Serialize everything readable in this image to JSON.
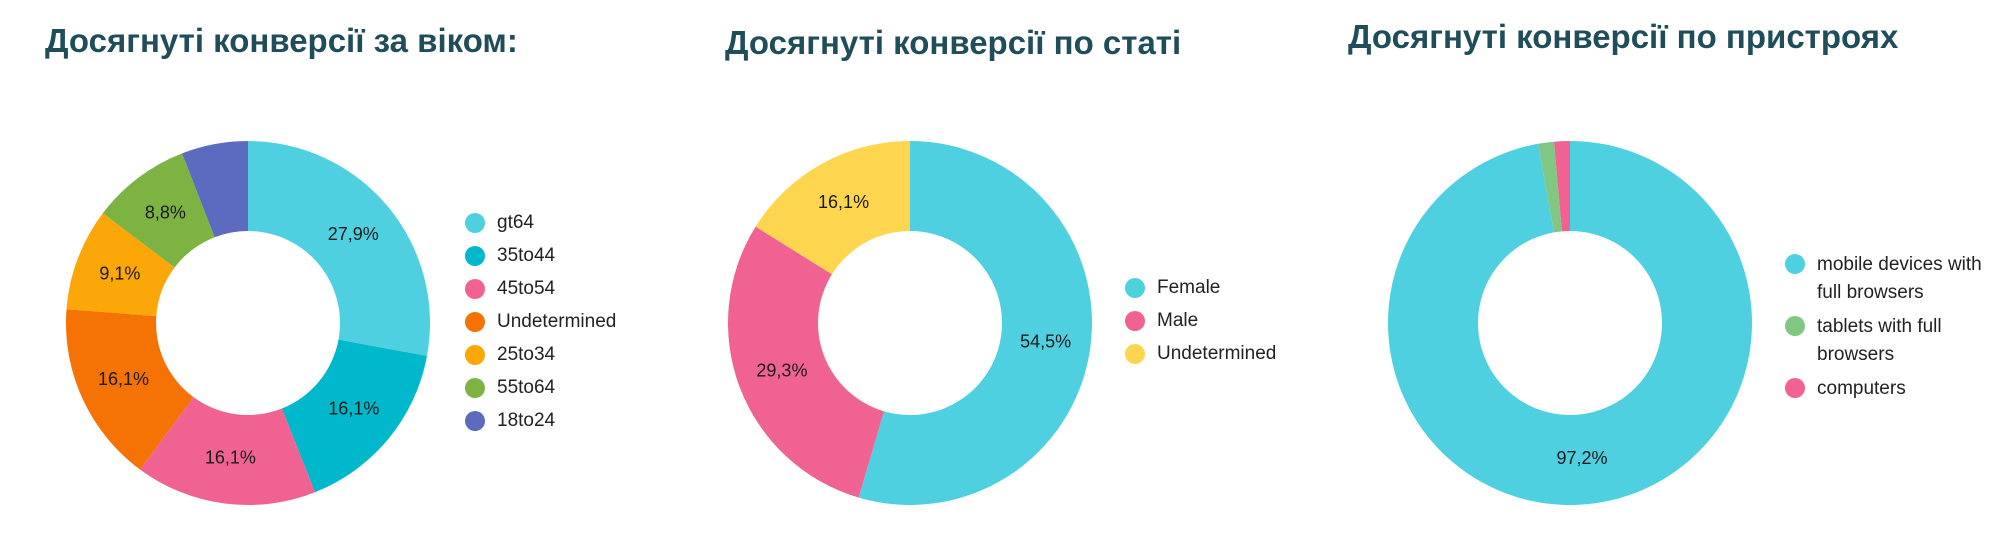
{
  "chart_data": [
    {
      "type": "pie",
      "title": "Досягнуті конверсії за віком:",
      "slices": [
        {
          "label": "gt64",
          "value": 27.9,
          "value_label": "27,9%",
          "color": "#4fd0e0"
        },
        {
          "label": "35to44",
          "value": 16.1,
          "value_label": "16,1%",
          "color": "#00b8cc"
        },
        {
          "label": "45to54",
          "value": 16.1,
          "value_label": "16,1%",
          "color": "#f06292"
        },
        {
          "label": "Undetermined",
          "value": 16.1,
          "value_label": "16,1%",
          "color": "#f57205"
        },
        {
          "label": "25to34",
          "value": 9.1,
          "value_label": "9,1%",
          "color": "#fba707"
        },
        {
          "label": "55to64",
          "value": 8.8,
          "value_label": "8,8%",
          "color": "#7cb342"
        },
        {
          "label": "18to24",
          "value": 5.9,
          "value_label": "",
          "color": "#5c6bc0"
        }
      ],
      "legend": [
        "gt64",
        "35to44",
        "45to54",
        "Undetermined",
        "25to34",
        "55to64",
        "18to24"
      ]
    },
    {
      "type": "pie",
      "title": "Досягнуті конверсії по статі",
      "slices": [
        {
          "label": "Female",
          "value": 54.5,
          "value_label": "54,5%",
          "color": "#4fd0e0"
        },
        {
          "label": "Male",
          "value": 29.3,
          "value_label": "29,3%",
          "color": "#f06292"
        },
        {
          "label": "Undetermined",
          "value": 16.1,
          "value_label": "16,1%",
          "color": "#fdd54e"
        }
      ],
      "legend": [
        "Female",
        "Male",
        "Undetermined"
      ]
    },
    {
      "type": "pie",
      "title": "Досягнуті конверсії по пристроях",
      "slices": [
        {
          "label": "mobile devices with full browsers",
          "value": 97.2,
          "value_label": "97,2%",
          "color": "#4fd0e0"
        },
        {
          "label": "tablets with full browsers",
          "value": 1.4,
          "value_label": "",
          "color": "#81c784"
        },
        {
          "label": "computers",
          "value": 1.4,
          "value_label": "",
          "color": "#f06292"
        }
      ],
      "legend": [
        "mobile devices with full browsers",
        "tablets with full browsers",
        "computers"
      ]
    }
  ]
}
